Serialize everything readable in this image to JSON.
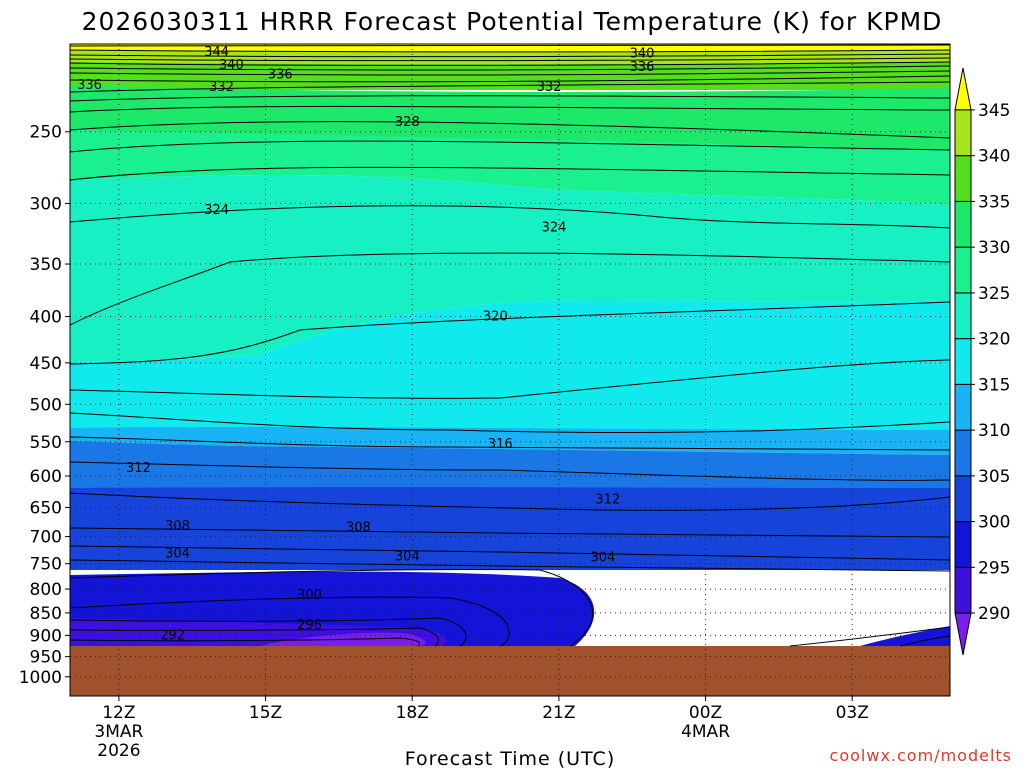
{
  "chart_data": {
    "type": "heatmap",
    "title": "2026030311 HRRR Forecast Potential Temperature (K) for KPMD",
    "xlabel": "Forecast Time (UTC)",
    "credit": "coolwx.com/modelts",
    "x_ticks": [
      {
        "label": "12Z",
        "sub1": "3MAR",
        "sub2": "2026"
      },
      {
        "label": "15Z",
        "sub1": "",
        "sub2": ""
      },
      {
        "label": "18Z",
        "sub1": "",
        "sub2": ""
      },
      {
        "label": "21Z",
        "sub1": "",
        "sub2": ""
      },
      {
        "label": "00Z",
        "sub1": "4MAR",
        "sub2": ""
      },
      {
        "label": "03Z",
        "sub1": "",
        "sub2": ""
      }
    ],
    "x_hours": [
      12,
      15,
      18,
      21,
      24,
      27
    ],
    "x_range_hours": [
      11,
      29
    ],
    "y_ticks": [
      250,
      300,
      350,
      400,
      450,
      500,
      550,
      600,
      650,
      700,
      750,
      800,
      850,
      900,
      950,
      1000
    ],
    "y_range_hpa": [
      200,
      1050
    ],
    "y_scale": "log",
    "colorbar": {
      "levels": [
        290,
        295,
        300,
        305,
        310,
        315,
        320,
        325,
        330,
        335,
        340,
        345
      ],
      "colors": [
        "#7a1fe8",
        "#3d10e0",
        "#1414d8",
        "#1644da",
        "#1a78e6",
        "#18b4f5",
        "#11eaec",
        "#17f0c2",
        "#1bf08e",
        "#1ee86a",
        "#54de1e",
        "#a8e41a",
        "#ffff00"
      ]
    },
    "terrain_color": "#a0522d",
    "terrain_top_hpa": 930,
    "contour_labels": [
      {
        "value": "344",
        "hour": 14.0,
        "hpa": 204
      },
      {
        "value": "340",
        "hour": 14.3,
        "hpa": 211
      },
      {
        "value": "336",
        "hour": 15.3,
        "hpa": 216
      },
      {
        "value": "340",
        "hour": 22.7,
        "hpa": 205
      },
      {
        "value": "336",
        "hour": 22.7,
        "hpa": 212
      },
      {
        "value": "336",
        "hour": 11.4,
        "hpa": 222
      },
      {
        "value": "332",
        "hour": 14.1,
        "hpa": 223
      },
      {
        "value": "332",
        "hour": 20.8,
        "hpa": 223
      },
      {
        "value": "328",
        "hour": 17.9,
        "hpa": 244
      },
      {
        "value": "324",
        "hour": 14.0,
        "hpa": 305
      },
      {
        "value": "324",
        "hour": 20.9,
        "hpa": 319
      },
      {
        "value": "320",
        "hour": 19.7,
        "hpa": 400
      },
      {
        "value": "316",
        "hour": 19.8,
        "hpa": 553
      },
      {
        "value": "312",
        "hour": 12.4,
        "hpa": 588
      },
      {
        "value": "312",
        "hour": 22.0,
        "hpa": 637
      },
      {
        "value": "308",
        "hour": 13.2,
        "hpa": 681
      },
      {
        "value": "308",
        "hour": 16.9,
        "hpa": 684
      },
      {
        "value": "304",
        "hour": 13.2,
        "hpa": 731
      },
      {
        "value": "304",
        "hour": 17.9,
        "hpa": 736
      },
      {
        "value": "304",
        "hour": 21.9,
        "hpa": 738
      },
      {
        "value": "300",
        "hour": 15.9,
        "hpa": 812
      },
      {
        "value": "296",
        "hour": 15.9,
        "hpa": 876
      },
      {
        "value": "292",
        "hour": 13.1,
        "hpa": 900
      }
    ]
  }
}
